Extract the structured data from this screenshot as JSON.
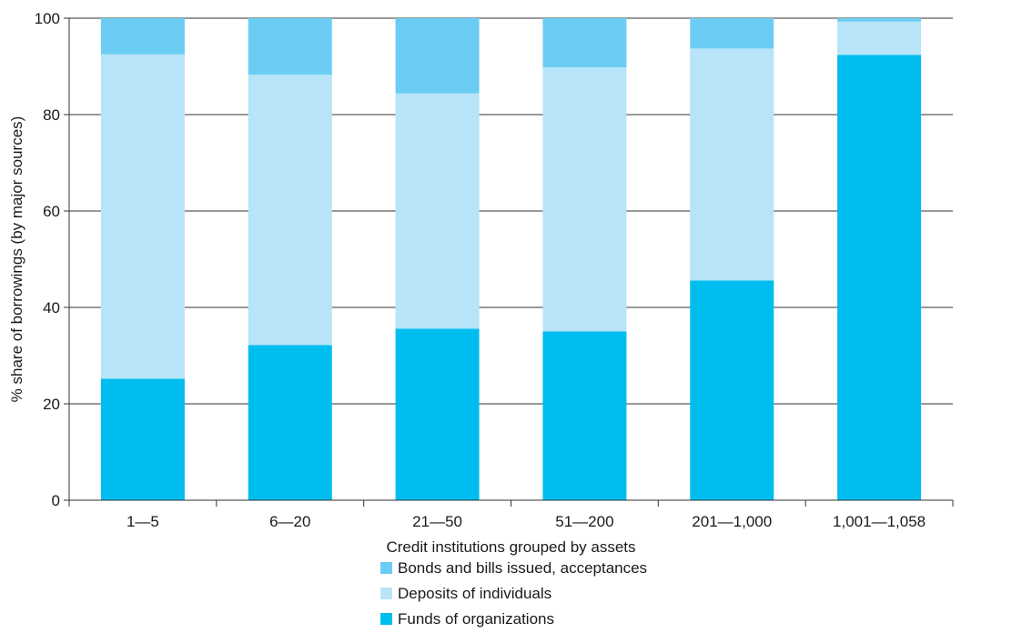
{
  "chart_data": {
    "type": "bar",
    "stacked": true,
    "categories": [
      "1—5",
      "6—20",
      "21—50",
      "51—200",
      "201—1,000",
      "1,001—1,058"
    ],
    "series": [
      {
        "name": "Funds of organizations",
        "color": "#00bdf0",
        "values": [
          25.2,
          32.2,
          35.6,
          35.0,
          45.6,
          92.4
        ]
      },
      {
        "name": "Deposits of individuals",
        "color": "#b7e4f8",
        "values": [
          67.3,
          56.1,
          48.8,
          54.8,
          48.1,
          6.9
        ]
      },
      {
        "name": "Bonds and bills issued, acceptances",
        "color": "#6ccdf4",
        "values": [
          7.5,
          11.7,
          15.6,
          10.2,
          6.3,
          0.7
        ]
      }
    ],
    "legend_order": [
      "Bonds and bills issued, acceptances",
      "Deposits of individuals",
      "Funds of organizations"
    ],
    "xlabel": "Credit institutions grouped by assets",
    "ylabel": "% share of borrowings (by major sources)",
    "ylim": [
      0,
      100
    ],
    "yticks": [
      0,
      20,
      40,
      60,
      80,
      100
    ],
    "grid": true,
    "legend_position": "bottom"
  }
}
